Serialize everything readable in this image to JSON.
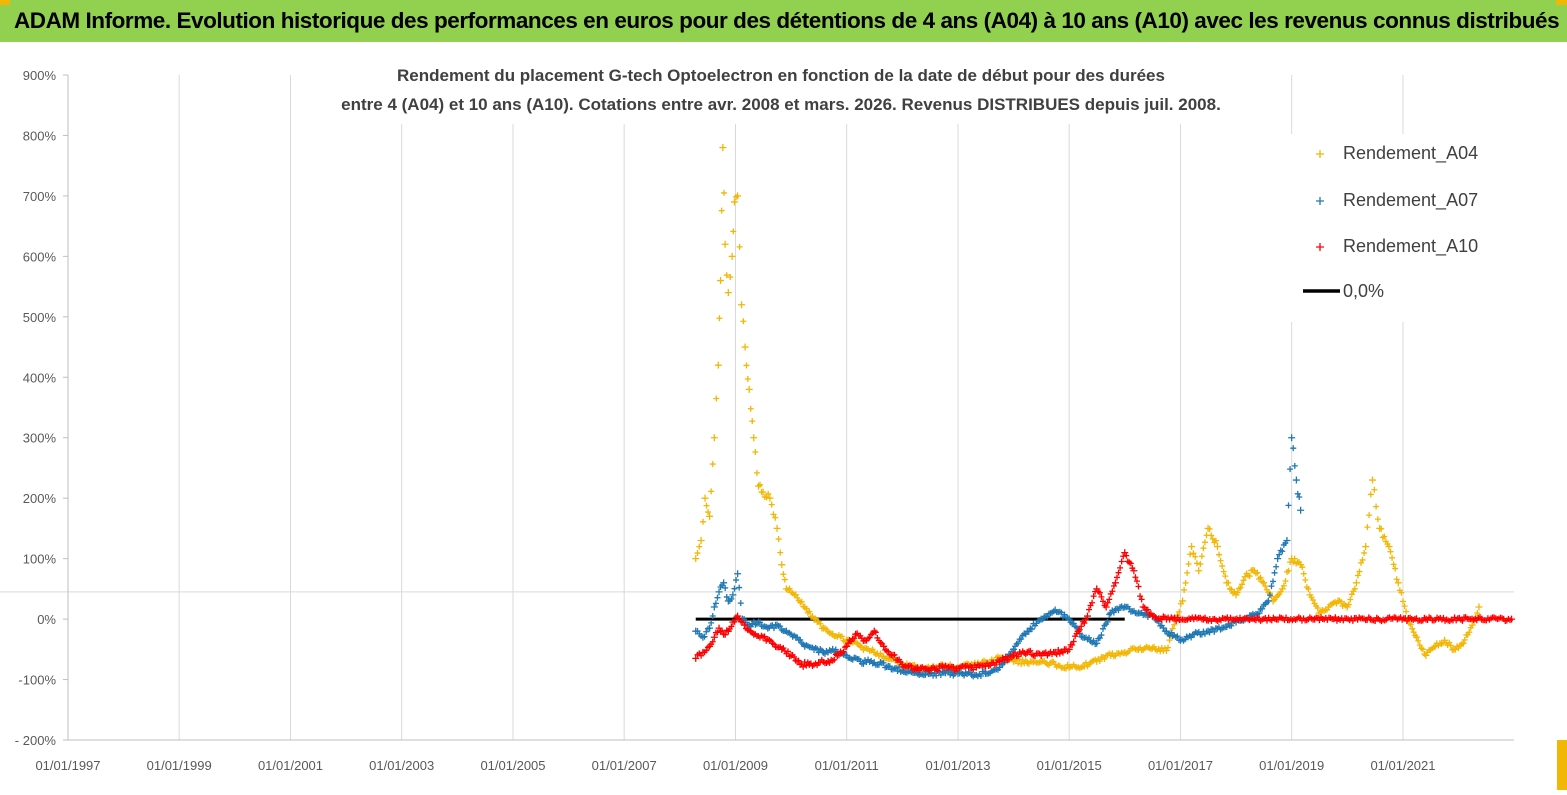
{
  "header": {
    "title": "ADAM Informe. Evolution historique des performances en euros pour des détentions de 4 ans (A04) à 10 ans (A10) avec les revenus connus distribués"
  },
  "colors": {
    "header_bg": "#92d050",
    "a04": "#f2b705",
    "a07": "#1f78b4",
    "a10": "#ff0000",
    "zero_line": "#000000"
  },
  "chart_data": {
    "type": "scatter",
    "title_lines": [
      "Rendement du placement G-tech Optoelectron  en fonction de la date de début pour des durées",
      "entre 4 (A04) et 10 ans (A10). Cotations entre avr. 2008 et mars. 2026. Revenus DISTRIBUES depuis juil. 2008."
    ],
    "x_axis": {
      "type": "date",
      "range": [
        "1997-01-01",
        "2022-12-31"
      ],
      "tick_labels": [
        "01/01/1997",
        "01/01/1999",
        "01/01/2001",
        "01/01/2003",
        "01/01/2005",
        "01/01/2007",
        "01/01/2009",
        "01/01/2011",
        "01/01/2013",
        "01/01/2015",
        "01/01/2017",
        "01/01/2019",
        "01/01/2021"
      ]
    },
    "y_axis": {
      "unit": "%",
      "range": [
        -200,
        900
      ],
      "tick_values": [
        -200,
        -100,
        0,
        100,
        200,
        300,
        400,
        500,
        600,
        700,
        800,
        900
      ],
      "tick_labels": [
        "- 200%",
        "-100%",
        "0%",
        "100%",
        "200%",
        "300%",
        "400%",
        "500%",
        "600%",
        "700%",
        "800%",
        "900%"
      ]
    },
    "grid": "vertical",
    "legend_position": "top-right",
    "series": [
      {
        "name": "Rendement_A04",
        "marker": "+",
        "color": "#f2b705",
        "points": [
          [
            "2008-04-15",
            100
          ],
          [
            "2008-05-20",
            130
          ],
          [
            "2008-06-15",
            200
          ],
          [
            "2008-07-15",
            170
          ],
          [
            "2008-08-15",
            300
          ],
          [
            "2008-09-10",
            420
          ],
          [
            "2008-09-25",
            560
          ],
          [
            "2008-10-10",
            780
          ],
          [
            "2008-10-25",
            620
          ],
          [
            "2008-11-15",
            540
          ],
          [
            "2008-12-10",
            600
          ],
          [
            "2008-12-25",
            690
          ],
          [
            "2009-01-15",
            700
          ],
          [
            "2009-02-10",
            520
          ],
          [
            "2009-03-05",
            450
          ],
          [
            "2009-04-01",
            380
          ],
          [
            "2009-05-01",
            300
          ],
          [
            "2009-06-01",
            220
          ],
          [
            "2009-07-01",
            210
          ],
          [
            "2009-08-15",
            200
          ],
          [
            "2009-10-01",
            150
          ],
          [
            "2009-11-01",
            90
          ],
          [
            "2009-12-01",
            50
          ],
          [
            "2010-02-01",
            40
          ],
          [
            "2010-04-01",
            20
          ],
          [
            "2010-06-01",
            0
          ],
          [
            "2010-08-01",
            -15
          ],
          [
            "2010-10-01",
            -25
          ],
          [
            "2011-01-01",
            -35
          ],
          [
            "2011-04-01",
            -45
          ],
          [
            "2011-07-01",
            -55
          ],
          [
            "2011-10-01",
            -65
          ],
          [
            "2012-01-01",
            -75
          ],
          [
            "2012-04-01",
            -80
          ],
          [
            "2012-07-01",
            -82
          ],
          [
            "2012-10-01",
            -78
          ],
          [
            "2013-01-01",
            -80
          ],
          [
            "2013-04-01",
            -75
          ],
          [
            "2013-07-01",
            -72
          ],
          [
            "2013-10-01",
            -65
          ],
          [
            "2014-01-01",
            -70
          ],
          [
            "2014-04-01",
            -72
          ],
          [
            "2014-07-01",
            -70
          ],
          [
            "2014-10-01",
            -75
          ],
          [
            "2015-01-01",
            -80
          ],
          [
            "2015-04-01",
            -78
          ],
          [
            "2015-07-01",
            -70
          ],
          [
            "2015-10-01",
            -60
          ],
          [
            "2016-01-01",
            -55
          ],
          [
            "2016-04-01",
            -50
          ],
          [
            "2016-07-01",
            -48
          ],
          [
            "2016-10-01",
            -52
          ],
          [
            "2016-12-01",
            0
          ],
          [
            "2017-01-15",
            30
          ],
          [
            "2017-03-15",
            120
          ],
          [
            "2017-05-01",
            80
          ],
          [
            "2017-07-01",
            150
          ],
          [
            "2017-09-01",
            120
          ],
          [
            "2017-11-01",
            60
          ],
          [
            "2018-01-01",
            40
          ],
          [
            "2018-03-01",
            70
          ],
          [
            "2018-05-01",
            80
          ],
          [
            "2018-07-01",
            60
          ],
          [
            "2018-09-01",
            30
          ],
          [
            "2018-11-01",
            50
          ],
          [
            "2019-01-01",
            100
          ],
          [
            "2019-03-01",
            90
          ],
          [
            "2019-05-01",
            40
          ],
          [
            "2019-07-01",
            10
          ],
          [
            "2019-09-01",
            20
          ],
          [
            "2019-11-01",
            30
          ],
          [
            "2020-01-01",
            20
          ],
          [
            "2020-03-01",
            60
          ],
          [
            "2020-05-01",
            120
          ],
          [
            "2020-06-15",
            230
          ],
          [
            "2020-08-01",
            150
          ],
          [
            "2020-10-01",
            120
          ],
          [
            "2020-12-01",
            60
          ],
          [
            "2021-02-01",
            0
          ],
          [
            "2021-04-01",
            -30
          ],
          [
            "2021-06-01",
            -60
          ],
          [
            "2021-08-01",
            -45
          ],
          [
            "2021-10-01",
            -35
          ],
          [
            "2021-12-01",
            -50
          ],
          [
            "2022-02-01",
            -40
          ],
          [
            "2022-04-01",
            -10
          ],
          [
            "2022-05-15",
            20
          ]
        ]
      },
      {
        "name": "Rendement_A07",
        "marker": "+",
        "color": "#1f78b4",
        "points": [
          [
            "2008-04-15",
            -20
          ],
          [
            "2008-06-01",
            -30
          ],
          [
            "2008-07-15",
            -15
          ],
          [
            "2008-08-15",
            20
          ],
          [
            "2008-09-15",
            45
          ],
          [
            "2008-10-15",
            60
          ],
          [
            "2008-11-15",
            30
          ],
          [
            "2008-12-15",
            40
          ],
          [
            "2009-01-15",
            75
          ],
          [
            "2009-02-15",
            0
          ],
          [
            "2009-04-01",
            -10
          ],
          [
            "2009-06-01",
            -5
          ],
          [
            "2009-08-01",
            -15
          ],
          [
            "2009-10-01",
            -10
          ],
          [
            "2009-12-01",
            -20
          ],
          [
            "2010-02-01",
            -30
          ],
          [
            "2010-04-01",
            -45
          ],
          [
            "2010-06-01",
            -50
          ],
          [
            "2010-08-01",
            -55
          ],
          [
            "2010-10-01",
            -50
          ],
          [
            "2011-01-01",
            -60
          ],
          [
            "2011-04-01",
            -70
          ],
          [
            "2011-07-01",
            -72
          ],
          [
            "2011-10-01",
            -78
          ],
          [
            "2012-01-01",
            -85
          ],
          [
            "2012-04-01",
            -88
          ],
          [
            "2012-07-01",
            -90
          ],
          [
            "2012-10-01",
            -88
          ],
          [
            "2013-01-01",
            -90
          ],
          [
            "2013-04-01",
            -92
          ],
          [
            "2013-07-01",
            -90
          ],
          [
            "2013-10-01",
            -80
          ],
          [
            "2014-01-01",
            -50
          ],
          [
            "2014-04-01",
            -20
          ],
          [
            "2014-07-01",
            0
          ],
          [
            "2014-10-01",
            15
          ],
          [
            "2015-01-01",
            0
          ],
          [
            "2015-04-01",
            -30
          ],
          [
            "2015-07-01",
            -40
          ],
          [
            "2015-10-01",
            10
          ],
          [
            "2016-01-01",
            20
          ],
          [
            "2016-04-01",
            10
          ],
          [
            "2016-07-01",
            5
          ],
          [
            "2016-10-01",
            -20
          ],
          [
            "2017-01-01",
            -35
          ],
          [
            "2017-04-01",
            -25
          ],
          [
            "2017-07-01",
            -20
          ],
          [
            "2017-10-01",
            -15
          ],
          [
            "2018-01-01",
            -5
          ],
          [
            "2018-03-01",
            0
          ],
          [
            "2018-06-01",
            10
          ],
          [
            "2018-08-01",
            30
          ],
          [
            "2018-10-01",
            100
          ],
          [
            "2018-12-01",
            130
          ],
          [
            "2019-01-01",
            300
          ],
          [
            "2019-02-01",
            230
          ],
          [
            "2019-03-01",
            180
          ]
        ]
      },
      {
        "name": "Rendement_A10",
        "marker": "+",
        "color": "#ff0000",
        "points": [
          [
            "2008-04-15",
            -65
          ],
          [
            "2008-06-01",
            -55
          ],
          [
            "2008-07-15",
            -45
          ],
          [
            "2008-08-15",
            -30
          ],
          [
            "2008-09-15",
            -15
          ],
          [
            "2008-10-15",
            -25
          ],
          [
            "2008-11-15",
            -20
          ],
          [
            "2008-12-15",
            -5
          ],
          [
            "2009-01-15",
            5
          ],
          [
            "2009-03-01",
            -10
          ],
          [
            "2009-05-01",
            -25
          ],
          [
            "2009-07-01",
            -30
          ],
          [
            "2009-09-01",
            -40
          ],
          [
            "2009-11-01",
            -50
          ],
          [
            "2010-01-01",
            -60
          ],
          [
            "2010-03-01",
            -75
          ],
          [
            "2010-05-01",
            -75
          ],
          [
            "2010-07-01",
            -72
          ],
          [
            "2010-09-01",
            -70
          ],
          [
            "2010-11-01",
            -60
          ],
          [
            "2011-01-01",
            -45
          ],
          [
            "2011-03-01",
            -25
          ],
          [
            "2011-05-01",
            -35
          ],
          [
            "2011-07-01",
            -20
          ],
          [
            "2011-09-01",
            -45
          ],
          [
            "2011-11-01",
            -60
          ],
          [
            "2012-01-01",
            -75
          ],
          [
            "2012-04-01",
            -82
          ],
          [
            "2012-07-01",
            -85
          ],
          [
            "2012-10-01",
            -80
          ],
          [
            "2013-01-01",
            -82
          ],
          [
            "2013-04-01",
            -80
          ],
          [
            "2013-07-01",
            -78
          ],
          [
            "2013-10-01",
            -70
          ],
          [
            "2014-01-01",
            -60
          ],
          [
            "2014-04-01",
            -55
          ],
          [
            "2014-07-01",
            -60
          ],
          [
            "2014-10-01",
            -55
          ],
          [
            "2015-01-01",
            -50
          ],
          [
            "2015-03-01",
            -20
          ],
          [
            "2015-05-01",
            5
          ],
          [
            "2015-07-01",
            50
          ],
          [
            "2015-09-01",
            20
          ],
          [
            "2015-11-01",
            60
          ],
          [
            "2016-01-01",
            110
          ],
          [
            "2016-03-01",
            80
          ],
          [
            "2016-05-01",
            20
          ],
          [
            "2016-07-01",
            5
          ],
          [
            "2016-10-01",
            0
          ],
          [
            "2017-06-01",
            0
          ],
          [
            "2018-06-01",
            0
          ],
          [
            "2019-06-01",
            0
          ],
          [
            "2020-06-01",
            0
          ],
          [
            "2021-06-01",
            0
          ],
          [
            "2022-06-01",
            0
          ],
          [
            "2022-12-15",
            0
          ]
        ]
      }
    ],
    "reference_line": {
      "name": "0,0%",
      "y": 0,
      "x_start": "2008-04-15",
      "x_end": "2016-01-01"
    }
  }
}
